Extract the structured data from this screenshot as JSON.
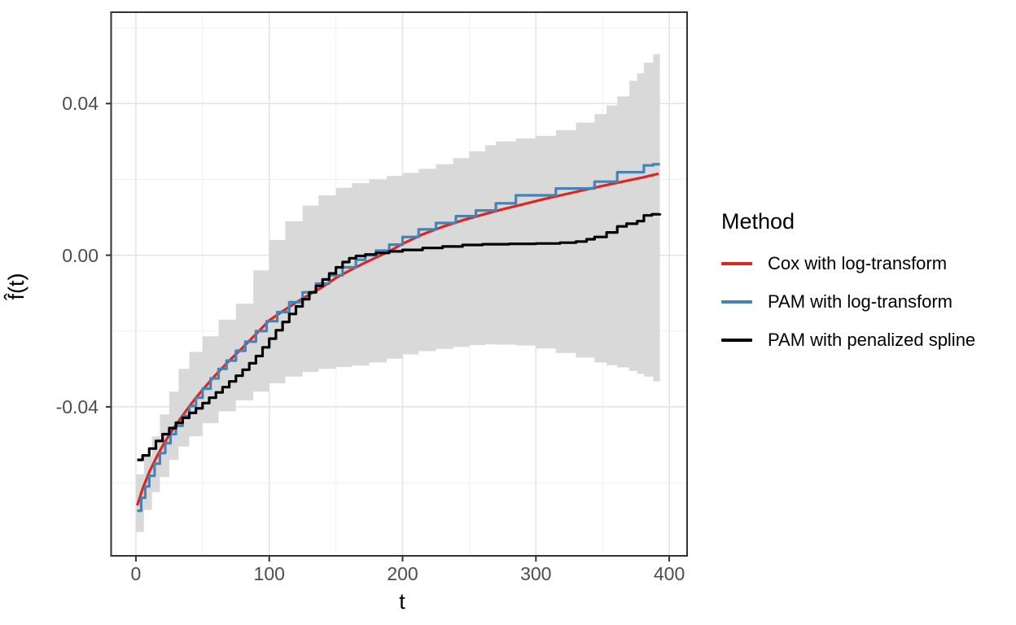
{
  "chart_data": {
    "type": "line",
    "title": "",
    "xlabel": "t",
    "ylabel": "f̂(t)",
    "xlim": [
      -18.6,
      413.4
    ],
    "ylim": [
      -0.0793,
      0.0641
    ],
    "grid": true,
    "x_ticks": {
      "values": [
        0,
        100,
        200,
        300,
        400
      ],
      "labels": [
        "0",
        "100",
        "200",
        "300",
        "400"
      ]
    },
    "x_minor": [
      50,
      150,
      250,
      350
    ],
    "y_ticks": {
      "values": [
        0.04,
        0.0,
        -0.04
      ],
      "labels": [
        "0.04",
        "0.00",
        "-0.04"
      ]
    },
    "y_minor": [
      0.06,
      0.02,
      -0.02,
      -0.06
    ],
    "colors": {
      "background": "#ffffff",
      "grid_major": "#e3e3e3",
      "grid_minor": "#efefef",
      "panel_border": "#333333",
      "tick_mark": "#333333",
      "tick_text": "#4d4d4d",
      "ribbon": "#d9d9d9",
      "cox": "#e02421",
      "pam_log": "#4682b4",
      "pam_spline": "#000000"
    },
    "legend": {
      "title": "Method",
      "position": "right",
      "entries": [
        {
          "label": "Cox with log-transform",
          "color": "#e02421"
        },
        {
          "label": "PAM with log-transform",
          "color": "#4682b4"
        },
        {
          "label": "PAM with penalized spline",
          "color": "#000000"
        }
      ]
    },
    "ribbon": {
      "name": "confidence-band",
      "t": [
        0,
        6,
        12,
        18,
        25,
        32,
        40,
        50,
        62,
        75,
        88,
        100,
        112,
        125,
        137,
        150,
        162,
        175,
        188,
        200,
        212,
        225,
        238,
        250,
        262,
        270,
        285,
        300,
        315,
        330,
        344,
        353,
        361,
        370,
        376,
        381,
        388,
        393
      ],
      "lower": [
        -0.073,
        -0.0672,
        -0.0625,
        -0.0585,
        -0.054,
        -0.0505,
        -0.0478,
        -0.0443,
        -0.0412,
        -0.0383,
        -0.036,
        -0.0338,
        -0.032,
        -0.0308,
        -0.03,
        -0.0295,
        -0.0291,
        -0.0283,
        -0.0273,
        -0.0262,
        -0.0253,
        -0.0247,
        -0.0242,
        -0.0237,
        -0.0235,
        -0.0236,
        -0.0238,
        -0.0246,
        -0.0258,
        -0.027,
        -0.0283,
        -0.029,
        -0.0296,
        -0.0305,
        -0.0313,
        -0.032,
        -0.0333,
        -0.0347
      ],
      "upper": [
        -0.0578,
        -0.053,
        -0.0478,
        -0.042,
        -0.036,
        -0.03,
        -0.0255,
        -0.0214,
        -0.017,
        -0.0128,
        -0.004,
        0.004,
        0.009,
        0.0131,
        0.0158,
        0.0178,
        0.019,
        0.02,
        0.0209,
        0.0217,
        0.0228,
        0.024,
        0.0256,
        0.0274,
        0.029,
        0.03,
        0.0308,
        0.0315,
        0.033,
        0.035,
        0.0372,
        0.0395,
        0.0419,
        0.046,
        0.048,
        0.0508,
        0.053,
        0.0554
      ]
    },
    "series": [
      {
        "name": "Cox with log-transform",
        "style": "smooth",
        "color": "#e02421",
        "t": [
          1,
          5,
          10,
          15,
          20,
          25,
          30,
          35,
          40,
          45,
          50,
          60,
          70,
          80,
          90,
          100,
          110,
          120,
          130,
          140,
          150,
          160,
          170,
          180,
          190,
          200,
          215,
          230,
          245,
          260,
          275,
          290,
          305,
          320,
          335,
          350,
          365,
          380,
          392
        ],
        "v": [
          -0.066,
          -0.0616,
          -0.0572,
          -0.0536,
          -0.0503,
          -0.0474,
          -0.0448,
          -0.0423,
          -0.0399,
          -0.0376,
          -0.0355,
          -0.0315,
          -0.0278,
          -0.0244,
          -0.0208,
          -0.0172,
          -0.0148,
          -0.0125,
          -0.0104,
          -0.0084,
          -0.006,
          -0.0041,
          -0.0023,
          -0.0006,
          0.001,
          0.003,
          0.0055,
          0.0075,
          0.0092,
          0.0107,
          0.0121,
          0.0134,
          0.0147,
          0.0159,
          0.0171,
          0.0183,
          0.0194,
          0.0205,
          0.0215
        ]
      },
      {
        "name": "PAM with log-transform",
        "style": "step",
        "color": "#4682b4",
        "t": [
          1,
          4,
          7,
          10,
          14,
          18,
          22,
          26,
          30,
          35,
          40,
          45,
          50,
          56,
          62,
          68,
          75,
          82,
          90,
          98,
          106,
          115,
          125,
          135,
          145,
          155,
          165,
          172,
          180,
          190,
          200,
          212,
          225,
          240,
          255,
          270,
          285,
          315,
          344,
          361,
          381,
          388,
          393
        ],
        "v": [
          -0.0674,
          -0.064,
          -0.061,
          -0.0582,
          -0.055,
          -0.0522,
          -0.0496,
          -0.0472,
          -0.045,
          -0.0424,
          -0.0398,
          -0.0376,
          -0.0352,
          -0.0325,
          -0.03,
          -0.0278,
          -0.0252,
          -0.0228,
          -0.02,
          -0.0174,
          -0.015,
          -0.0124,
          -0.0098,
          -0.0075,
          -0.0053,
          -0.0032,
          -0.0012,
          0.0,
          0.0012,
          0.0028,
          0.0048,
          0.0068,
          0.0085,
          0.0103,
          0.0118,
          0.0137,
          0.0158,
          0.0176,
          0.0194,
          0.0219,
          0.0237,
          0.024,
          0.024
        ]
      },
      {
        "name": "PAM with penalized spline",
        "style": "step",
        "color": "#000000",
        "t": [
          1,
          5,
          10,
          15,
          20,
          25,
          30,
          35,
          40,
          45,
          50,
          55,
          60,
          65,
          70,
          75,
          80,
          85,
          90,
          95,
          100,
          105,
          110,
          115,
          120,
          125,
          130,
          135,
          140,
          145,
          150,
          155,
          160,
          165,
          172,
          180,
          190,
          200,
          215,
          230,
          245,
          260,
          280,
          300,
          318,
          330,
          338,
          344,
          353,
          361,
          368,
          376,
          381,
          387,
          393
        ],
        "v": [
          -0.054,
          -0.0528,
          -0.051,
          -0.049,
          -0.0472,
          -0.0456,
          -0.0442,
          -0.0429,
          -0.0416,
          -0.0404,
          -0.039,
          -0.0376,
          -0.0362,
          -0.0348,
          -0.0333,
          -0.0318,
          -0.0302,
          -0.0285,
          -0.0266,
          -0.0243,
          -0.022,
          -0.0198,
          -0.0176,
          -0.0155,
          -0.0135,
          -0.0116,
          -0.0098,
          -0.0081,
          -0.0064,
          -0.0048,
          -0.0032,
          -0.0018,
          -0.0008,
          -0.0002,
          0.0002,
          0.0006,
          0.001,
          0.0014,
          0.0019,
          0.0023,
          0.0027,
          0.0029,
          0.003,
          0.0031,
          0.0033,
          0.0036,
          0.0042,
          0.0048,
          0.006,
          0.0076,
          0.0083,
          0.009,
          0.0105,
          0.0108,
          0.011
        ]
      }
    ]
  }
}
